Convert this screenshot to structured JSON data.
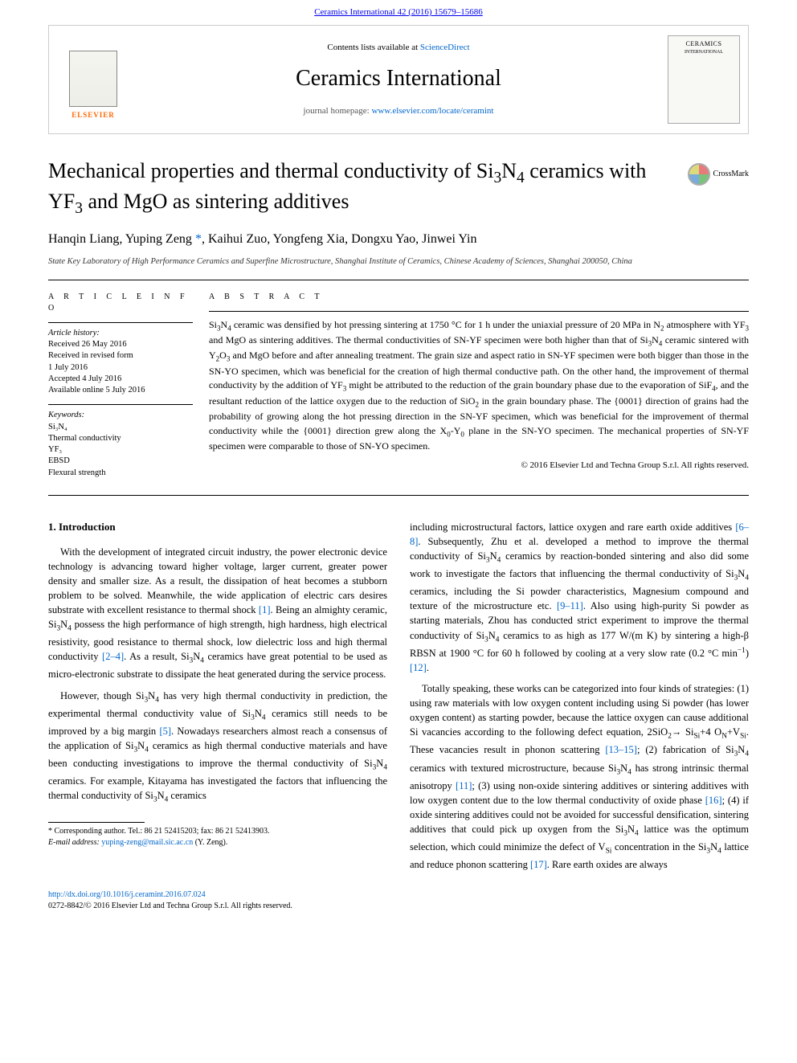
{
  "header": {
    "citation": "Ceramics International 42 (2016) 15679–15686",
    "contents_prefix": "Contents lists available at ",
    "contents_link": "ScienceDirect",
    "journal_name": "Ceramics International",
    "homepage_prefix": "journal homepage: ",
    "homepage_url": "www.elsevier.com/locate/ceramint",
    "elsevier_label": "ELSEVIER",
    "cover_title": "CERAMICS",
    "cover_sub": "INTERNATIONAL"
  },
  "article": {
    "title_html": "Mechanical properties and thermal conductivity of Si<sub>3</sub>N<sub>4</sub> ceramics with YF<sub>3</sub> and MgO as sintering additives",
    "crossmark_label": "CrossMark",
    "authors_html": "Hanqin Liang, Yuping Zeng <a href=\"#\">*</a>, Kaihui Zuo, Yongfeng Xia, Dongxu Yao, Jinwei Yin",
    "affiliation": "State Key Laboratory of High Performance Ceramics and Superfine Microstructure, Shanghai Institute of Ceramics, Chinese Academy of Sciences, Shanghai 200050, China"
  },
  "info": {
    "heading": "A R T I C L E  I N F O",
    "history_label": "Article history:",
    "history": [
      "Received 26 May 2016",
      "Received in revised form",
      "1 July 2016",
      "Accepted 4 July 2016",
      "Available online 5 July 2016"
    ],
    "keywords_label": "Keywords:",
    "keywords": [
      "Si₃N₄",
      "Thermal conductivity",
      "YF₃",
      "EBSD",
      "Flexural strength"
    ]
  },
  "abstract": {
    "heading": "A B S T R A C T",
    "text_html": "Si<sub>3</sub>N<sub>4</sub> ceramic was densified by hot pressing sintering at 1750 °C for 1 h under the uniaxial pressure of 20 MPa in N<sub>2</sub> atmosphere with YF<sub>3</sub> and MgO as sintering additives. The thermal conductivities of SN-YF specimen were both higher than that of Si<sub>3</sub>N<sub>4</sub> ceramic sintered with Y<sub>2</sub>O<sub>3</sub> and MgO before and after annealing treatment. The grain size and aspect ratio in SN-YF specimen were both bigger than those in the SN-YO specimen, which was beneficial for the creation of high thermal conductive path. On the other hand, the improvement of thermal conductivity by the addition of YF<sub>3</sub> might be attributed to the reduction of the grain boundary phase due to the evaporation of SiF<sub>4</sub>, and the resultant reduction of the lattice oxygen due to the reduction of SiO<sub>2</sub> in the grain boundary phase. The {0001} direction of grains had the probability of growing along the hot pressing direction in the SN-YF specimen, which was beneficial for the improvement of thermal conductivity while the {0001} direction grew along the X<sub>0</sub>-Y<sub>0</sub> plane in the SN-YO specimen. The mechanical properties of SN-YF specimen were comparable to those of SN-YO specimen.",
    "copyright": "© 2016 Elsevier Ltd and Techna Group S.r.l. All rights reserved."
  },
  "body": {
    "section_heading": "1.  Introduction",
    "col1": [
      "With the development of integrated circuit industry, the power electronic device technology is advancing toward higher voltage, larger current, greater power density and smaller size. As a result, the dissipation of heat becomes a stubborn problem to be solved. Meanwhile, the wide application of electric cars desires substrate with excellent resistance to thermal shock <a class=\"ref-link\" href=\"#\">[1]</a>. Being an almighty ceramic, Si<sub>3</sub>N<sub>4</sub> possess the high performance of high strength, high hardness, high electrical resistivity, good resistance to thermal shock, low dielectric loss and high thermal conductivity <a class=\"ref-link\" href=\"#\">[2–4]</a>. As a result, Si<sub>3</sub>N<sub>4</sub> ceramics have great potential to be used as micro-electronic substrate to dissipate the heat generated during the service process.",
      "However, though Si<sub>3</sub>N<sub>4</sub> has very high thermal conductivity in prediction, the experimental thermal conductivity value of Si<sub>3</sub>N<sub>4</sub> ceramics still needs to be improved by a big margin <a class=\"ref-link\" href=\"#\">[5]</a>. Nowadays researchers almost reach a consensus of the application of Si<sub>3</sub>N<sub>4</sub> ceramics as high thermal conductive materials and have been conducting investigations to improve the thermal conductivity of Si<sub>3</sub>N<sub>4</sub> ceramics. For example, Kitayama has investigated the factors that influencing the thermal conductivity of Si<sub>3</sub>N<sub>4</sub> ceramics"
    ],
    "col2": [
      "including microstructural factors, lattice oxygen and rare earth oxide additives <a class=\"ref-link\" href=\"#\">[6–8]</a>. Subsequently, Zhu et al. developed a method to improve the thermal conductivity of Si<sub>3</sub>N<sub>4</sub> ceramics by reaction-bonded sintering and also did some work to investigate the factors that influencing the thermal conductivity of Si<sub>3</sub>N<sub>4</sub> ceramics, including the Si powder characteristics, Magnesium compound and texture of the microstructure etc. <a class=\"ref-link\" href=\"#\">[9–11]</a>. Also using high-purity Si powder as starting materials, Zhou has conducted strict experiment to improve the thermal conductivity of Si<sub>3</sub>N<sub>4</sub> ceramics to as high as 177 W/(m K) by sintering a high-β RBSN at 1900 °C for 60 h followed by cooling at a very slow rate (0.2 °C min<sup>−1</sup>) <a class=\"ref-link\" href=\"#\">[12]</a>.",
      "Totally speaking, these works can be categorized into four kinds of strategies: (1) using raw materials with low oxygen content including using Si powder (has lower oxygen content) as starting powder, because the lattice oxygen can cause additional Si vacancies according to the following defect equation, 2SiO<sub>2</sub>→ Si<sub>Si</sub>+4 O<sub>N</sub>+V<sub>Si</sub>. These vacancies result in phonon scattering <a class=\"ref-link\" href=\"#\">[13–15]</a>; (2) fabrication of Si<sub>3</sub>N<sub>4</sub> ceramics with textured microstructure, because Si<sub>3</sub>N<sub>4</sub> has strong intrinsic thermal anisotropy <a class=\"ref-link\" href=\"#\">[11]</a>; (3) using non-oxide sintering additives or sintering additives with low oxygen content due to the low thermal conductivity of oxide phase <a class=\"ref-link\" href=\"#\">[16]</a>; (4) if oxide sintering additives could not be avoided for successful densification, sintering additives that could pick up oxygen from the Si<sub>3</sub>N<sub>4</sub> lattice was the optimum selection, which could minimize the defect of V<sub>Si</sub> concentration in the Si<sub>3</sub>N<sub>4</sub> lattice and reduce phonon scattering <a class=\"ref-link\" href=\"#\">[17]</a>. Rare earth oxides are always"
    ]
  },
  "footnote": {
    "corr_html": "* Corresponding author. Tel.: 86 21 52415203; fax: 86 21 52413903.",
    "email_label": "E-mail address:",
    "email": "yuping-zeng@mail.sic.ac.cn",
    "email_who": "(Y. Zeng)."
  },
  "footer": {
    "doi": "http://dx.doi.org/10.1016/j.ceramint.2016.07.024",
    "issn_line": "0272-8842/© 2016 Elsevier Ltd and Techna Group S.r.l. All rights reserved."
  },
  "colors": {
    "link": "#0066cc",
    "elsevier_orange": "#ff6600",
    "text": "#000000",
    "bg": "#ffffff"
  }
}
